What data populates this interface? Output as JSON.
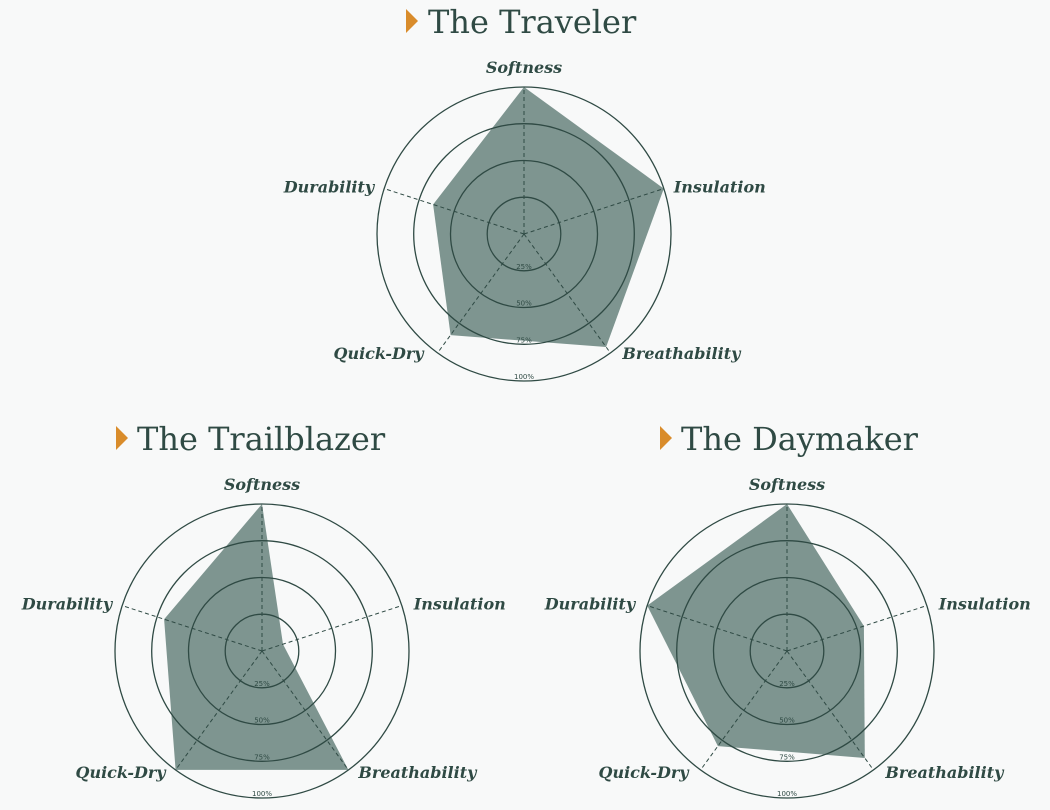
{
  "chart_data": [
    {
      "type": "radar",
      "title": "The Traveler",
      "axes": [
        "Softness",
        "Insulation",
        "Breathability",
        "Quick-Dry",
        "Durability"
      ],
      "values": [
        100,
        100,
        95,
        85,
        65
      ],
      "rings": [
        25,
        50,
        75,
        100
      ],
      "ring_labels": [
        "25%",
        "50%",
        "75%",
        "100%"
      ],
      "ylim": [
        0,
        100
      ]
    },
    {
      "type": "radar",
      "title": "The Trailblazer",
      "axes": [
        "Softness",
        "Insulation",
        "Breathability",
        "Quick-Dry",
        "Durability"
      ],
      "values": [
        100,
        15,
        100,
        100,
        70
      ],
      "rings": [
        25,
        50,
        75,
        100
      ],
      "ring_labels": [
        "25%",
        "50%",
        "75%",
        "100%"
      ],
      "ylim": [
        0,
        100
      ]
    },
    {
      "type": "radar",
      "title": "The Daymaker",
      "axes": [
        "Softness",
        "Insulation",
        "Breathability",
        "Quick-Dry",
        "Durability"
      ],
      "values": [
        100,
        55,
        90,
        80,
        100
      ],
      "rings": [
        25,
        50,
        75,
        100
      ],
      "ring_labels": [
        "25%",
        "50%",
        "75%",
        "100%"
      ],
      "ylim": [
        0,
        100
      ]
    }
  ],
  "colors": {
    "title": "#2f4a44",
    "marker": "#d98c2b",
    "grid": "#2f4a44",
    "fill": "#7e9590",
    "background": "#f8f9f9"
  }
}
